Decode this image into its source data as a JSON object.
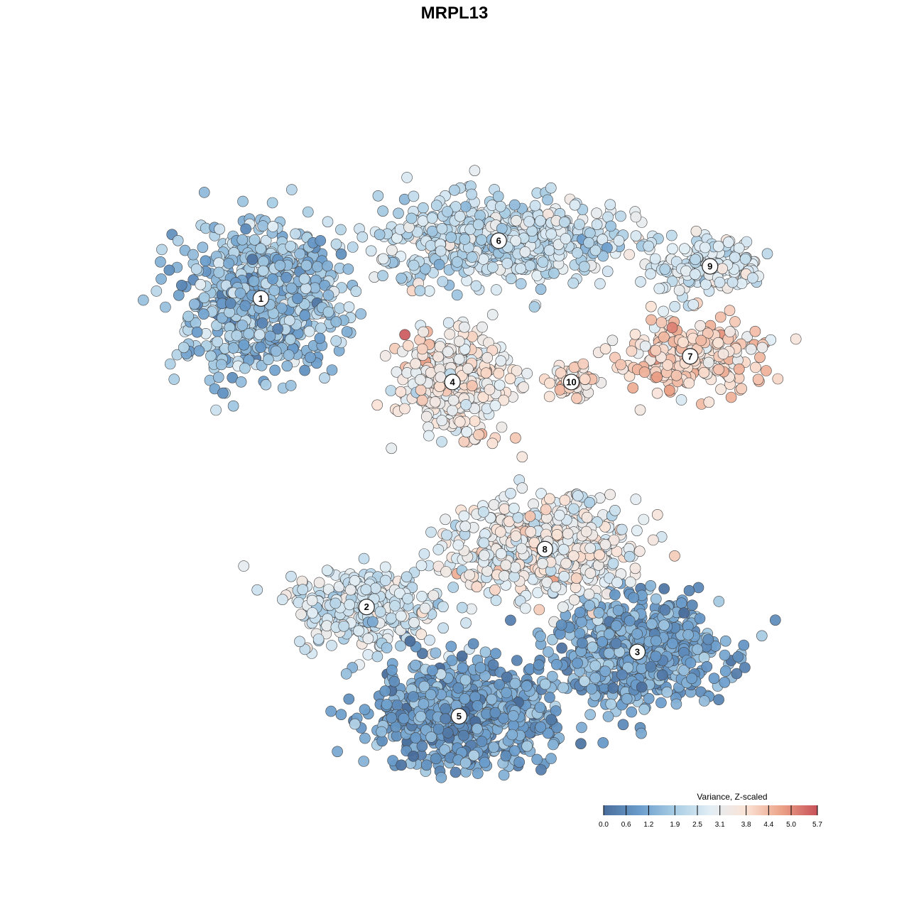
{
  "chart_data": {
    "type": "scatter",
    "title": "MRPL13",
    "xlabel": "",
    "ylabel": "",
    "grid": false,
    "color_scale": {
      "title": "Variance, Z-scaled",
      "min": 0.0,
      "max": 5.7,
      "ticks": [
        "0.0",
        "0.6",
        "1.2",
        "1.9",
        "2.5",
        "3.1",
        "3.8",
        "4.4",
        "5.0",
        "5.7"
      ],
      "stops": [
        "#4a6e9c",
        "#6a9ccb",
        "#a9cde4",
        "#e2eef5",
        "#fbe3d6",
        "#eba287",
        "#c85159"
      ],
      "legend_position": "bottom-right"
    },
    "clusters": [
      {
        "label": "1",
        "x": 1.8,
        "y": 7.4,
        "sx": 1.05,
        "sy": 1.05,
        "n": 680,
        "mean": 1.7,
        "sd": 0.6
      },
      {
        "label": "2",
        "x": 3.4,
        "y": 2.6,
        "sx": 1.0,
        "sy": 0.55,
        "n": 330,
        "mean": 2.6,
        "sd": 0.45
      },
      {
        "label": "3",
        "x": 7.5,
        "y": 1.9,
        "sx": 1.15,
        "sy": 0.75,
        "n": 640,
        "mean": 1.1,
        "sd": 0.45
      },
      {
        "label": "4",
        "x": 4.7,
        "y": 6.1,
        "sx": 0.75,
        "sy": 0.7,
        "n": 360,
        "mean": 3.4,
        "sd": 0.5
      },
      {
        "label": "5",
        "x": 4.8,
        "y": 0.9,
        "sx": 1.2,
        "sy": 0.75,
        "n": 760,
        "mean": 1.05,
        "sd": 0.5
      },
      {
        "label": "6",
        "x": 5.4,
        "y": 8.3,
        "sx": 1.6,
        "sy": 0.6,
        "n": 620,
        "mean": 2.4,
        "sd": 0.5
      },
      {
        "label": "7",
        "x": 8.3,
        "y": 6.5,
        "sx": 1.05,
        "sy": 0.55,
        "n": 260,
        "mean": 3.9,
        "sd": 0.45
      },
      {
        "label": "8",
        "x": 6.1,
        "y": 3.5,
        "sx": 1.25,
        "sy": 0.7,
        "n": 540,
        "mean": 3.1,
        "sd": 0.55
      },
      {
        "label": "9",
        "x": 8.6,
        "y": 7.9,
        "sx": 0.75,
        "sy": 0.4,
        "n": 180,
        "mean": 2.7,
        "sd": 0.4
      },
      {
        "label": "10",
        "x": 6.5,
        "y": 6.1,
        "sx": 0.3,
        "sy": 0.25,
        "n": 50,
        "mean": 3.8,
        "sd": 0.5
      }
    ],
    "xlim": [
      0,
      10
    ],
    "ylim": [
      0,
      10
    ]
  }
}
